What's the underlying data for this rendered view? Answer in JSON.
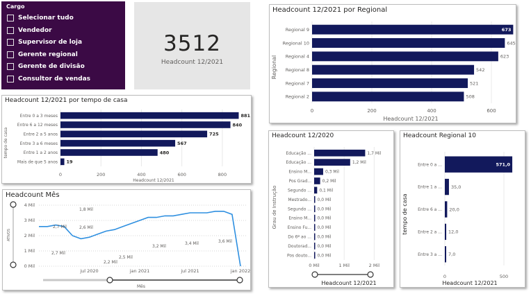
{
  "slicer": {
    "title": "Cargo",
    "items": [
      "Selecionar tudo",
      "Vendedor",
      "Supervisor de loja",
      "Gerente regional",
      "Gerente de divisão",
      "Consultor de vendas"
    ]
  },
  "kpi": {
    "value": "3512",
    "label": "Headcount 12/2021"
  },
  "regional": {
    "title": "Headcount 12/2021 por Regional",
    "ylabel": "Regional",
    "xlabel": "Headcount 12/2021",
    "xticks": [
      "0",
      "200",
      "400",
      "600"
    ]
  },
  "tempo": {
    "title": "Headcount 12/2021 por tempo de casa",
    "ylabel": "tempo de casa",
    "xlabel": "Headcount 12/2021",
    "xticks": [
      "0",
      "200",
      "400",
      "600",
      "800"
    ]
  },
  "mes": {
    "title": "Headcount Mês",
    "ylabel": "ATIVOS",
    "xlabel": "Mês",
    "yticks": [
      "0 Mil",
      "1 Mil",
      "2 Mil",
      "3 Mil",
      "4 Mil"
    ],
    "xticks": [
      "jul 2020",
      "jan 2021",
      "jul 2021",
      "jan 2022"
    ],
    "labels": [
      "1,8 Mil",
      "2,7 Mil",
      "2,6 Mil",
      "2,7 Mil",
      "2,2 Mil",
      "2,5 Mil",
      "3,2 Mil",
      "3,4 Mil",
      "3,6 Mil"
    ]
  },
  "grau": {
    "title": "Headcount 12/2020",
    "ylabel": "Grau de Instrução",
    "xlabel": "Headcount 12/2021",
    "xticks": [
      "0 Mil",
      "1 Mil",
      "2 Mil"
    ]
  },
  "reg10": {
    "title": "Headcount Regional 10",
    "ylabel": "tempo de casa",
    "xlabel": "Headcount 12/2021",
    "xticks": [
      "0",
      "500"
    ]
  },
  "colors": {
    "bar": "#12195c",
    "line": "#2e8fe0",
    "slicer_bg": "#3b0a45",
    "kpi_bg": "#e6e6e6"
  },
  "chart_data": [
    {
      "type": "bar",
      "orientation": "horizontal",
      "title": "Headcount 12/2021 por Regional",
      "categories": [
        "Regional 9",
        "Regional 10",
        "Regional 4",
        "Regional 8",
        "Regional 7",
        "Regional 2"
      ],
      "values": [
        673,
        645,
        623,
        542,
        521,
        508
      ],
      "xlabel": "Headcount 12/2021",
      "ylabel": "Regional",
      "xlim": [
        0,
        700
      ]
    },
    {
      "type": "bar",
      "orientation": "horizontal",
      "title": "Headcount 12/2021 por tempo de casa",
      "categories": [
        "Entre 0 a 3 meses",
        "Entre 6 a 12 meses",
        "Entre 2 a 5 anos",
        "Entre 3 a 6 meses",
        "Entre 1 a 2 anos",
        "Mais de que 5 anos"
      ],
      "values": [
        881,
        840,
        725,
        567,
        480,
        19
      ],
      "xlabel": "Headcount 12/2021",
      "ylabel": "tempo de casa",
      "xlim": [
        0,
        900
      ]
    },
    {
      "type": "line",
      "title": "Headcount Mês",
      "x": [
        "jan 2020",
        "fev 2020",
        "mar 2020",
        "abr 2020",
        "mai 2020",
        "jun 2020",
        "jul 2020",
        "ago 2020",
        "set 2020",
        "out 2020",
        "nov 2020",
        "dez 2020",
        "jan 2021",
        "fev 2021",
        "mar 2021",
        "abr 2021",
        "mai 2021",
        "jun 2021",
        "jul 2021",
        "ago 2021",
        "set 2021",
        "out 2021",
        "nov 2021",
        "dez 2021",
        "jan 2022"
      ],
      "y": [
        2.6,
        2.6,
        2.7,
        2.6,
        2.0,
        1.8,
        1.9,
        2.1,
        2.3,
        2.4,
        2.6,
        2.8,
        3.0,
        3.2,
        3.2,
        3.3,
        3.3,
        3.4,
        3.5,
        3.5,
        3.5,
        3.6,
        3.6,
        3.4,
        0.0
      ],
      "xlabel": "Mês",
      "ylabel": "ATIVOS",
      "ylim": [
        0,
        4
      ]
    },
    {
      "type": "bar",
      "orientation": "horizontal",
      "title": "Headcount 12/2020",
      "categories": [
        "Educação ...",
        "Educação ...",
        "Ensino M...",
        "Pos Grad...",
        "Segundo ...",
        "Mestrado...",
        "Segundo ...",
        "Ensino M...",
        "Ensino Fu...",
        "Do 6º ao ...",
        "Doutorad...",
        "Pos douto..."
      ],
      "values": [
        1.7,
        1.2,
        0.3,
        0.2,
        0.1,
        0.0,
        0.0,
        0.0,
        0.0,
        0.0,
        0.0,
        0.0
      ],
      "value_labels": [
        "1,7 Mil",
        "1,2 Mil",
        "0,3 Mil",
        "0,2 Mil",
        "0,1 Mil",
        "0,0 Mil",
        "0,0 Mil",
        "0,0 Mil",
        "0,0 Mil",
        "0,0 Mil",
        "0,0 Mil",
        "0,0 Mil"
      ],
      "xlabel": "Headcount 12/2021",
      "ylabel": "Grau de Instrução",
      "xlim": [
        0,
        2.2
      ]
    },
    {
      "type": "bar",
      "orientation": "horizontal",
      "title": "Headcount Regional 10",
      "categories": [
        "Entre 0 a ...",
        "Entre 1 a ...",
        "Entre 6 a ...",
        "Entre 2 a ...",
        "Entre 3 a ..."
      ],
      "values": [
        571.0,
        35.0,
        20.0,
        12.0,
        7.0
      ],
      "value_labels": [
        "571,0",
        "35,0",
        "20,0",
        "12,0",
        "7,0"
      ],
      "xlabel": "Headcount 12/2021",
      "ylabel": "tempo de casa",
      "xlim": [
        0,
        700
      ]
    }
  ]
}
